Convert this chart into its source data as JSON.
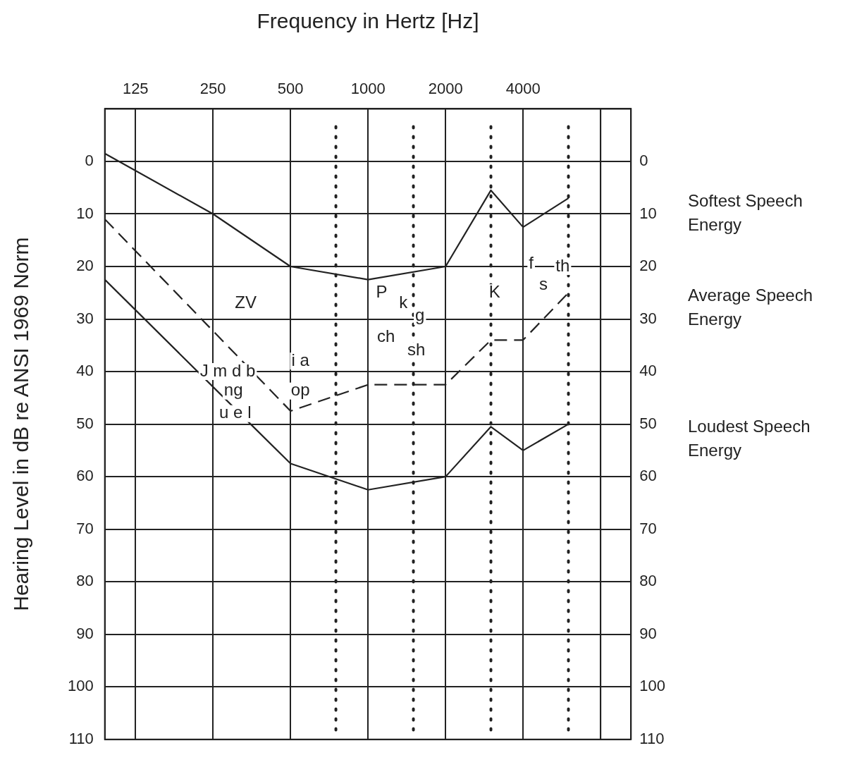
{
  "chart_data": {
    "type": "line",
    "xlabel": "Frequency in Hertz [Hz]",
    "ylabel": "Hearing Level in dB re ANSI 1969 Norm",
    "log": "x",
    "xlim": [
      95,
      10500
    ],
    "xticks": [
      125,
      250,
      500,
      1000,
      2000,
      4000,
      {
        "value": 8000,
        "label": null
      }
    ],
    "ylim": [
      110,
      -10
    ],
    "yticks": [
      {
        "value": -10,
        "label": null
      },
      0,
      10,
      20,
      30,
      40,
      50,
      60,
      70,
      80,
      90,
      100,
      110
    ],
    "y2lim": [
      110,
      -10
    ],
    "y2ticks": [
      {
        "value": -10,
        "label": null
      },
      0,
      10,
      20,
      30,
      40,
      50,
      60,
      70,
      80,
      90,
      100,
      110
    ],
    "grid": true,
    "legend": "right",
    "marker": "none",
    "series": [
      {
        "name": "Softest Speech Energy",
        "color": "#222222",
        "line_style": "solid",
        "x": [
          95,
          250,
          500,
          1000,
          2000,
          3000,
          4000,
          6000
        ],
        "values": [
          -1.5,
          10,
          20,
          22.5,
          20,
          5.5,
          12.5,
          7
        ]
      },
      {
        "name": "Average Speech Energy",
        "color": "#222222",
        "line_style": "dashed",
        "x": [
          95,
          500,
          1000,
          2000,
          3000,
          4000,
          6000
        ],
        "values": [
          11,
          47.5,
          42.5,
          42.5,
          34,
          34,
          25
        ]
      },
      {
        "name": "Loudest Speech Energy",
        "color": "#222222",
        "line_style": "solid",
        "x": [
          95,
          350,
          500,
          1000,
          2000,
          3000,
          4000,
          6000
        ],
        "values": [
          22.5,
          50,
          57.5,
          62.5,
          60,
          50.5,
          55,
          50
        ]
      }
    ],
    "ref_lines": [
      {
        "axis": "x",
        "value": 750,
        "color": "#222222",
        "line_style": "dotted"
      },
      {
        "axis": "x",
        "value": 1500,
        "color": "#222222",
        "line_style": "dotted"
      },
      {
        "axis": "x",
        "value": 3000,
        "color": "#222222",
        "line_style": "dotted"
      },
      {
        "axis": "x",
        "value": 6000,
        "color": "#222222",
        "line_style": "dotted"
      }
    ],
    "annotations": [
      "ZV",
      "J m d b",
      "ng",
      "u e l",
      "i a",
      "op",
      "P",
      "k",
      "g",
      "ch",
      "sh",
      "K",
      "f",
      "s",
      "th"
    ]
  }
}
